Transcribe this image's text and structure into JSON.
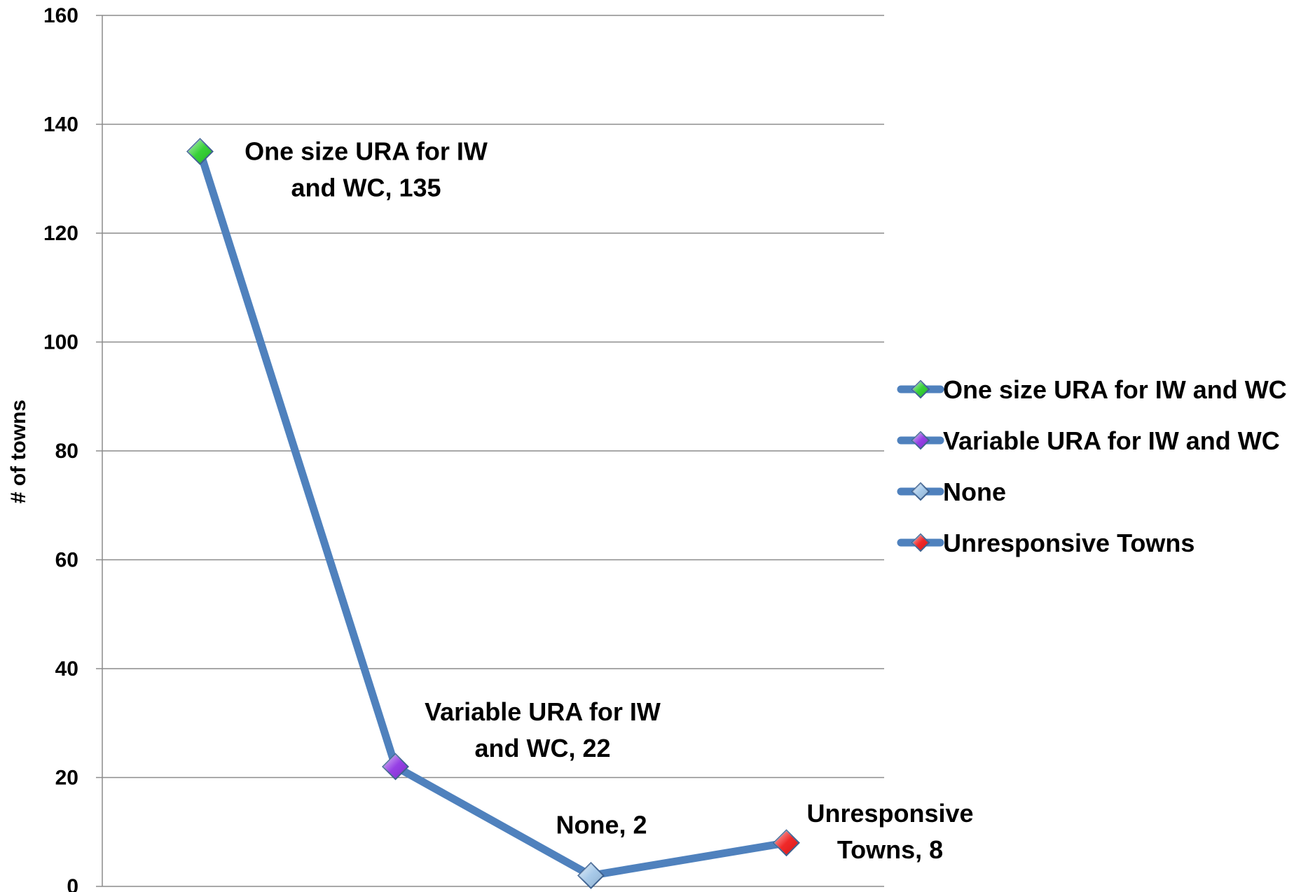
{
  "chart_data": {
    "type": "line",
    "title": "",
    "xlabel": "",
    "ylabel": "# of towns",
    "ylim": [
      0,
      160
    ],
    "yticks": [
      0,
      20,
      40,
      60,
      80,
      100,
      120,
      140,
      160
    ],
    "grid": true,
    "legend_position": "right",
    "line_color": "#4f81bd",
    "points": [
      {
        "category": "One size URA for IW and WC",
        "value": 135,
        "label_lines": [
          "One size URA for IW",
          "and WC, 135"
        ],
        "color": "#22cc22"
      },
      {
        "category": "Variable URA for IW and WC",
        "value": 22,
        "label_lines": [
          "Variable URA for IW",
          "and WC, 22"
        ],
        "color": "#8a2be2"
      },
      {
        "category": "None",
        "value": 2,
        "label_lines": [
          "None, 2"
        ],
        "color": "#9dc3e6"
      },
      {
        "category": "Unresponsive Towns",
        "value": 8,
        "label_lines": [
          "Unresponsive",
          "Towns, 8"
        ],
        "color": "#ee1111"
      }
    ],
    "legend": [
      {
        "label": "One size URA for IW and WC",
        "color": "#22cc22"
      },
      {
        "label": "Variable URA for IW and WC",
        "color": "#8a2be2"
      },
      {
        "label": "None",
        "color": "#9dc3e6"
      },
      {
        "label": "Unresponsive Towns",
        "color": "#ee1111"
      }
    ]
  }
}
